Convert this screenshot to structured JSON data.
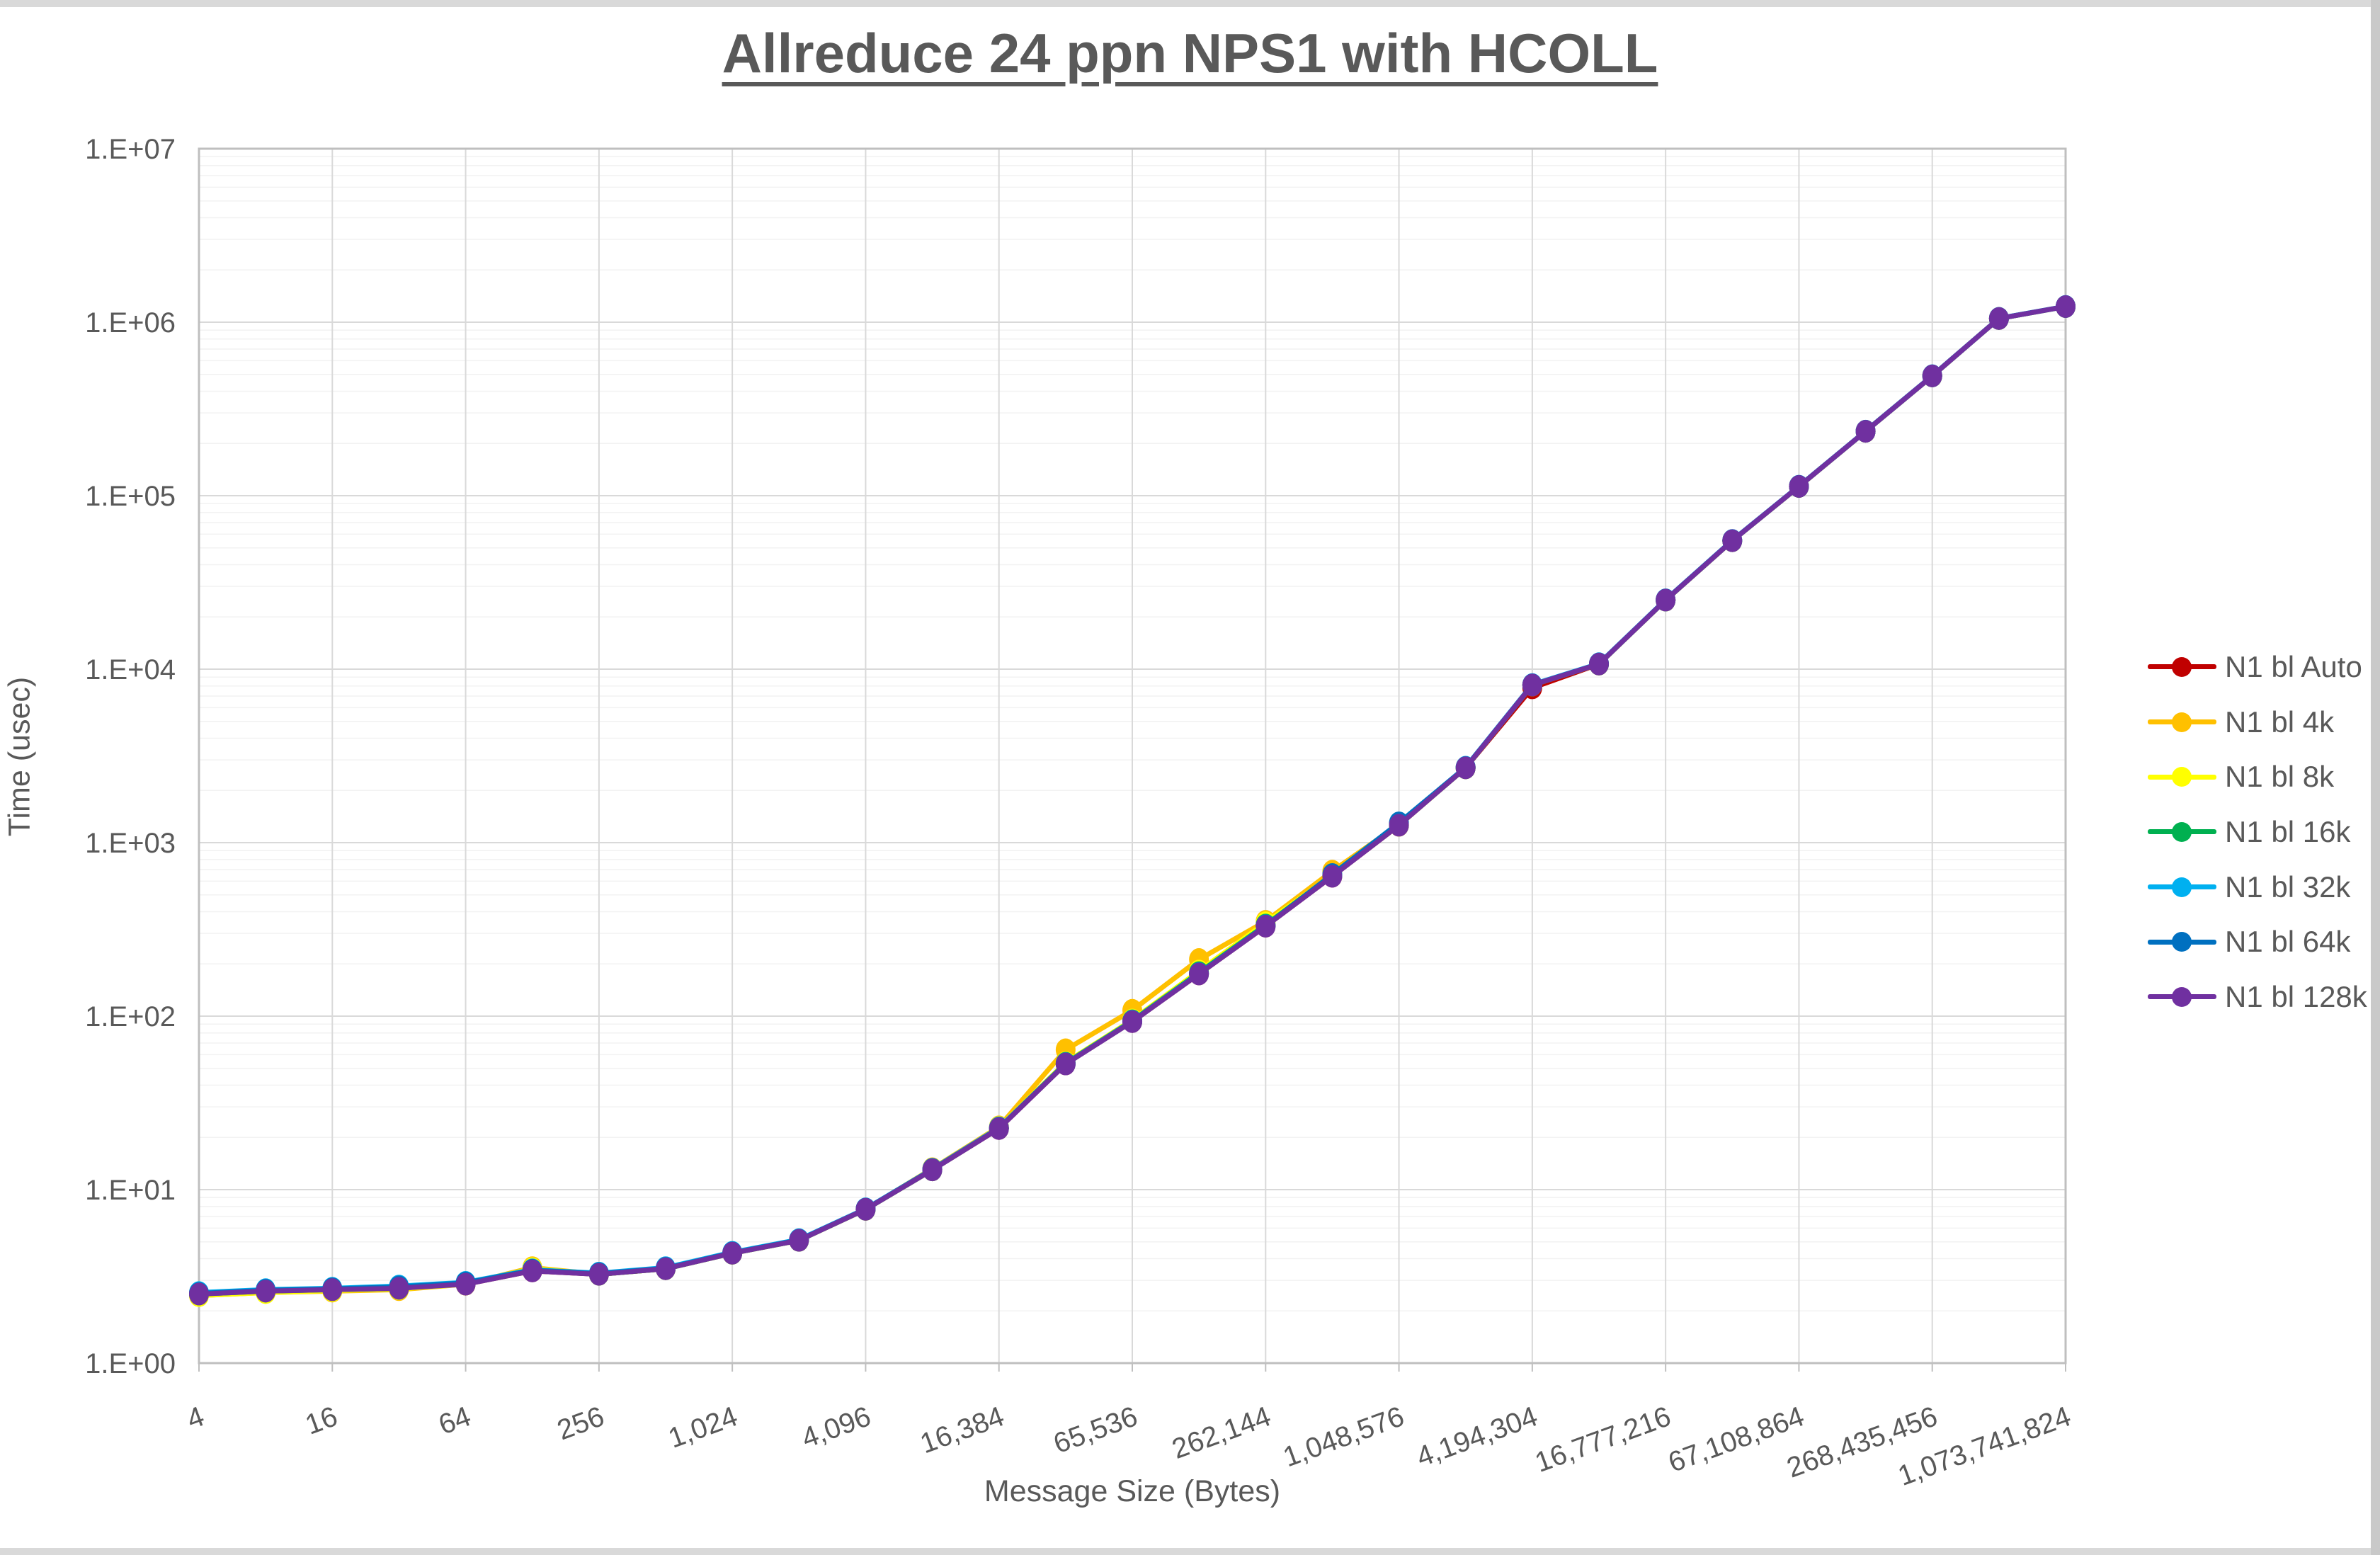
{
  "chart": {
    "title": "Allreduce 24 ppn NPS1 with HCOLL",
    "x_axis_label": "Message Size (Bytes)",
    "y_axis_label": "Time (usec)"
  },
  "chart_data": {
    "type": "line",
    "title": "Allreduce 24 ppn NPS1 with HCOLL",
    "xlabel": "Message Size (Bytes)",
    "ylabel": "Time (usec)",
    "x_scale": "log2-categories",
    "y_scale": "log10",
    "ylim": [
      1,
      10000000
    ],
    "grid": {
      "major": true,
      "minor_horizontal": true
    },
    "legend_position": "right",
    "text_color": "#595959",
    "gridline_major_color": "#d9d9d9",
    "gridline_minor_color": "#f2f2f2",
    "plot_border_color": "#bfbfbf",
    "y_tick_labels": [
      "1.E+00",
      "1.E+01",
      "1.E+02",
      "1.E+03",
      "1.E+04",
      "1.E+05",
      "1.E+06",
      "1.E+07"
    ],
    "x_tick_labels": [
      "4",
      "16",
      "64",
      "256",
      "1,024",
      "4,096",
      "16,384",
      "65,536",
      "262,144",
      "1,048,576",
      "4,194,304",
      "16,777,216",
      "67,108,864",
      "268,435,456",
      "1,073,741,824"
    ],
    "x_categories": [
      4,
      8,
      16,
      32,
      64,
      128,
      256,
      512,
      1024,
      2048,
      4096,
      8192,
      16384,
      32768,
      65536,
      131072,
      262144,
      524288,
      1048576,
      2097152,
      4194304,
      8388608,
      16777216,
      33554432,
      67108864,
      134217728,
      268435456,
      536870912,
      1073741824
    ],
    "series": [
      {
        "name": "N1 bl Auto",
        "color": "#C00000",
        "values": [
          2.5,
          2.6,
          2.65,
          2.7,
          2.85,
          3.4,
          3.25,
          3.5,
          4.3,
          5.1,
          7.7,
          13,
          22.5,
          53,
          93,
          175,
          330,
          640,
          1260,
          2700,
          7800,
          10700,
          25000,
          55000,
          113000,
          235000,
          490000,
          1050000,
          1230000
        ]
      },
      {
        "name": "N1 bl 4k",
        "color": "#FFC000",
        "values": [
          2.45,
          2.55,
          2.6,
          2.65,
          2.85,
          3.55,
          3.25,
          3.5,
          4.3,
          5.1,
          7.7,
          13.2,
          23,
          64,
          108,
          212,
          352,
          685,
          1270,
          2700,
          8100,
          10700,
          25000,
          55000,
          113000,
          235000,
          490000,
          1050000,
          1230000
        ]
      },
      {
        "name": "N1 bl 8k",
        "color": "#FFFF00",
        "values": [
          2.45,
          2.55,
          2.62,
          2.68,
          2.85,
          3.5,
          3.25,
          3.5,
          4.3,
          5.1,
          7.7,
          13,
          22.8,
          54,
          95,
          182,
          345,
          645,
          1260,
          2700,
          8100,
          10700,
          25000,
          55000,
          113000,
          235000,
          490000,
          1050000,
          1230000
        ]
      },
      {
        "name": "N1 bl 16k",
        "color": "#00B050",
        "values": [
          2.5,
          2.6,
          2.65,
          2.7,
          2.87,
          3.42,
          3.25,
          3.5,
          4.3,
          5.1,
          7.7,
          13,
          22.6,
          53.5,
          94,
          178,
          335,
          650,
          1265,
          2700,
          8100,
          10700,
          25000,
          55000,
          113000,
          235000,
          490000,
          1050000,
          1230000
        ]
      },
      {
        "name": "N1 bl 32k",
        "color": "#00B0F0",
        "values": [
          2.55,
          2.65,
          2.7,
          2.78,
          2.92,
          3.45,
          3.3,
          3.55,
          4.35,
          5.15,
          7.75,
          13.1,
          22.7,
          53.2,
          93.5,
          176,
          332,
          645,
          1290,
          2720,
          8150,
          10750,
          25100,
          55200,
          113300,
          235500,
          491000,
          1052000,
          1232000
        ]
      },
      {
        "name": "N1 bl 64k",
        "color": "#0070C0",
        "values": [
          2.52,
          2.63,
          2.68,
          2.75,
          2.9,
          3.43,
          3.28,
          3.52,
          4.32,
          5.12,
          7.72,
          13.05,
          22.6,
          53.1,
          93.2,
          175.5,
          331,
          655,
          1300,
          2710,
          8120,
          10720,
          25050,
          55100,
          113200,
          235200,
          490500,
          1051000,
          1231000
        ]
      },
      {
        "name": "N1 bl 128k",
        "color": "#7030A0",
        "values": [
          2.5,
          2.6,
          2.65,
          2.7,
          2.85,
          3.4,
          3.25,
          3.5,
          4.3,
          5.1,
          7.7,
          13,
          22.5,
          53,
          93,
          175,
          330,
          640,
          1260,
          2700,
          8100,
          10700,
          25000,
          55000,
          113000,
          235000,
          490000,
          1050000,
          1230000
        ]
      }
    ]
  }
}
